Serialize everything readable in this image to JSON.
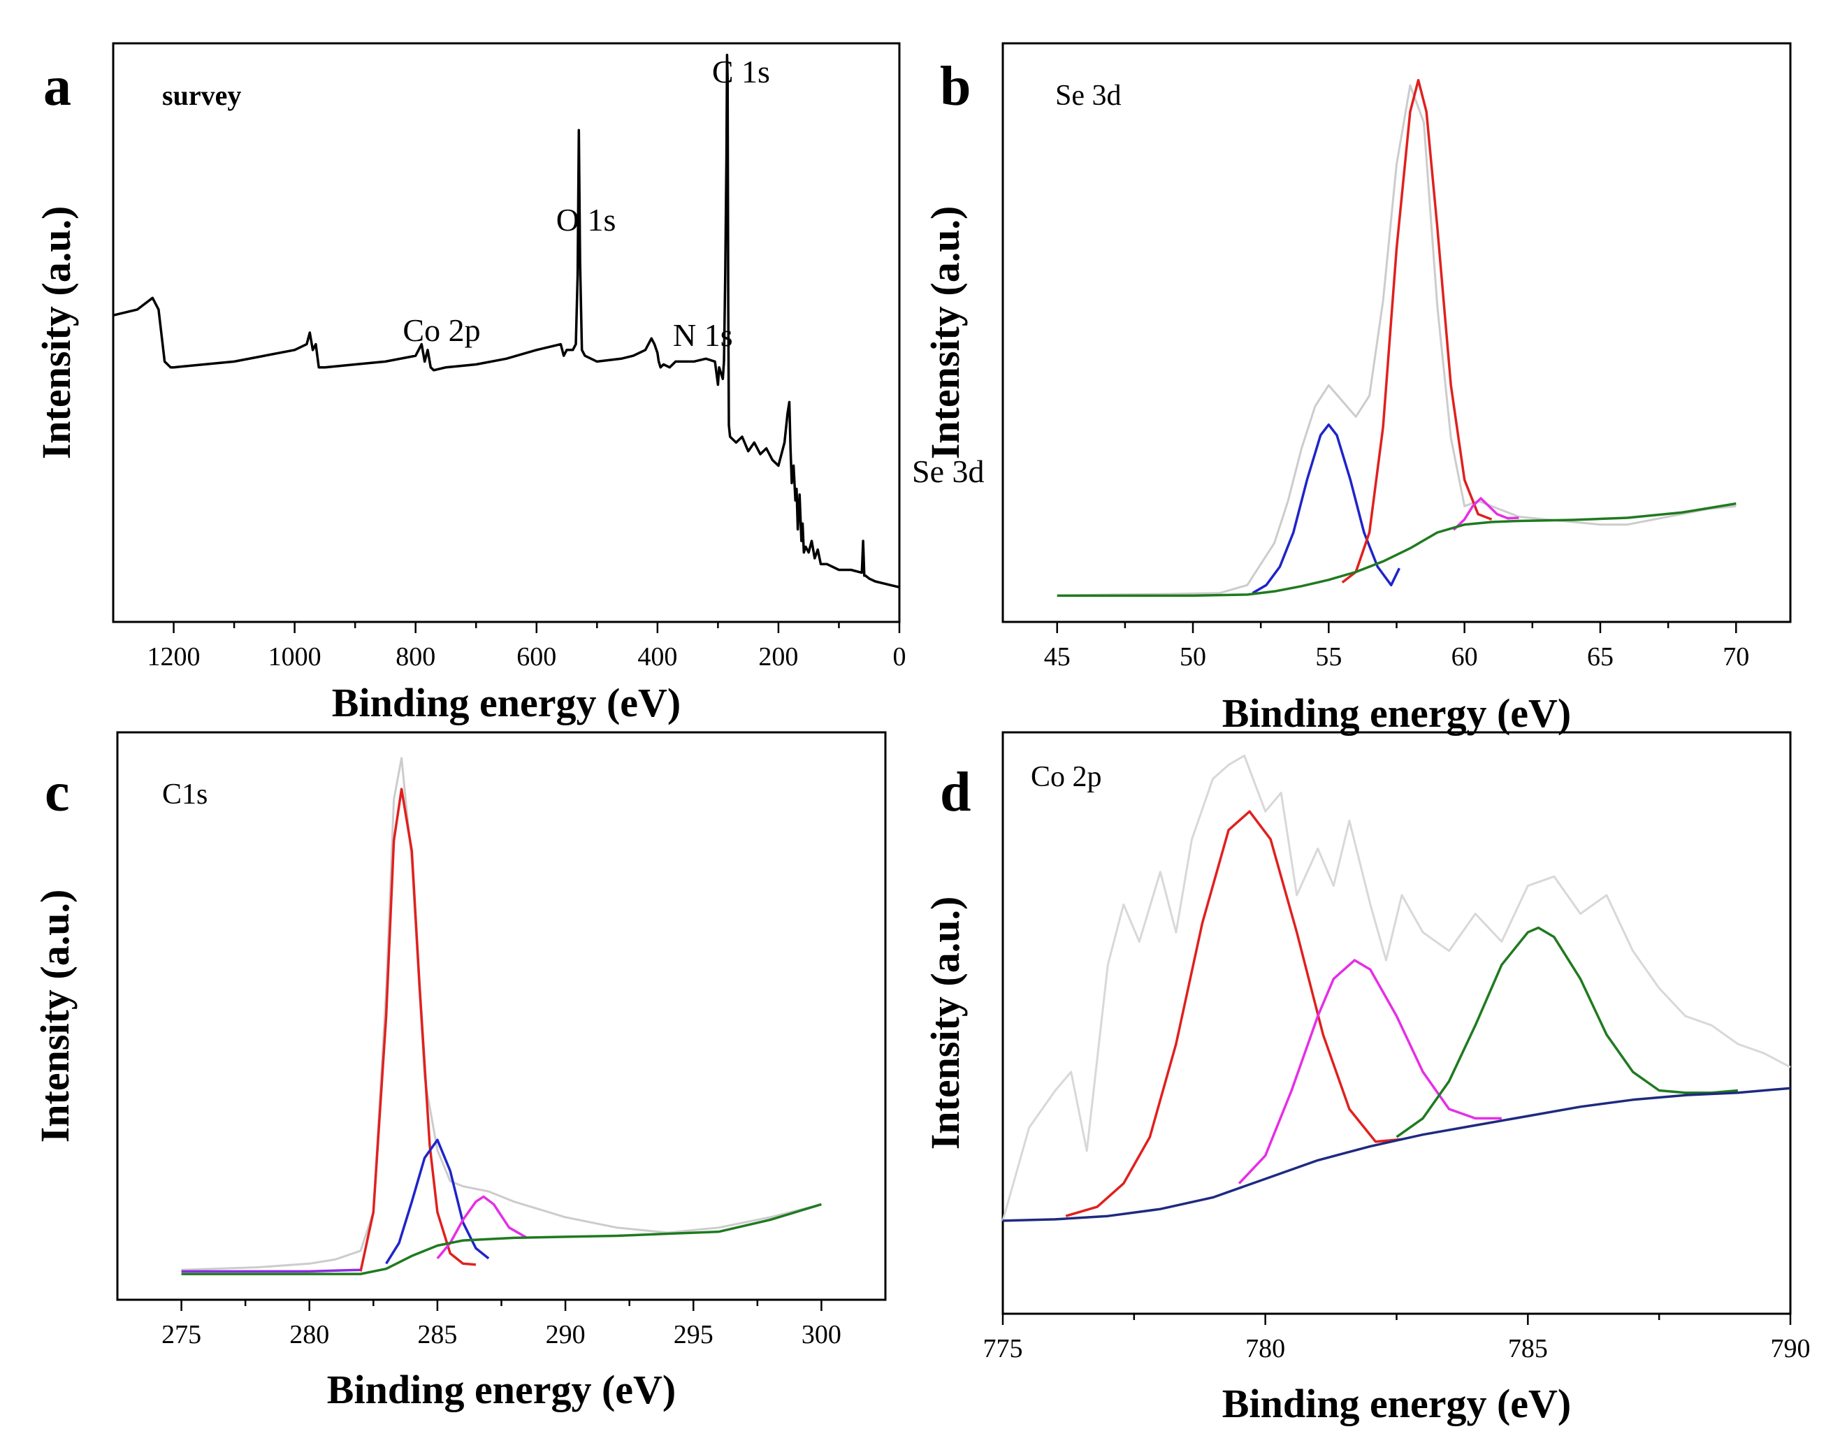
{
  "chart_data": [
    {
      "panel": "a",
      "type": "line",
      "title": "survey",
      "xlabel": "Binding energy (eV)",
      "ylabel": "Intensity (a.u.)",
      "xlim": [
        1300,
        0
      ],
      "ylim": [
        0,
        100
      ],
      "xticks": [
        1200,
        1000,
        800,
        600,
        400,
        200,
        0
      ],
      "colors": {
        "survey": "#000000"
      },
      "series": [
        {
          "name": "survey",
          "x": [
            1300,
            1260,
            1235,
            1225,
            1215,
            1205,
            1200,
            1150,
            1100,
            1050,
            1000,
            980,
            975,
            970,
            965,
            960,
            950,
            900,
            850,
            800,
            790,
            785,
            780,
            775,
            770,
            750,
            700,
            650,
            600,
            560,
            555,
            550,
            540,
            535,
            532,
            530,
            528,
            525,
            520,
            500,
            460,
            440,
            420,
            410,
            405,
            400,
            398,
            395,
            390,
            380,
            370,
            340,
            320,
            305,
            300,
            298,
            295,
            292,
            290,
            288,
            286,
            285,
            284,
            283,
            282,
            280,
            270,
            260,
            250,
            240,
            230,
            220,
            210,
            200,
            190,
            185,
            182,
            180,
            178,
            175,
            172,
            170,
            168,
            165,
            162,
            160,
            158,
            155,
            150,
            145,
            140,
            135,
            130,
            120,
            100,
            80,
            62,
            60,
            58,
            56,
            50,
            40,
            20,
            0
          ],
          "y": [
            53,
            54,
            56,
            54,
            45,
            44,
            44,
            44.5,
            45,
            46,
            47,
            48,
            50,
            47,
            48,
            44,
            44,
            44.5,
            45,
            46,
            48,
            45,
            47,
            44,
            43.5,
            44,
            44.5,
            45.5,
            47,
            48,
            46,
            47,
            47,
            48,
            60,
            85,
            62,
            47,
            46,
            45,
            45.5,
            46,
            47,
            49,
            48,
            46.5,
            45,
            44,
            44.5,
            44,
            45,
            45,
            45.5,
            45,
            41,
            44,
            43,
            42,
            45,
            60,
            80,
            98,
            94,
            55,
            34,
            32,
            31,
            32,
            29.5,
            31,
            29,
            30,
            28,
            27,
            31,
            36,
            38,
            30,
            24,
            27,
            21,
            23,
            16,
            22,
            14,
            17,
            12,
            13,
            12,
            14,
            11,
            12.5,
            10,
            10,
            9,
            9,
            8.5,
            14,
            8,
            8,
            7.5,
            7,
            6.5,
            6
          ]
        }
      ],
      "annotations": [
        {
          "text": "C 1s",
          "x": 285
        },
        {
          "text": "O 1s",
          "x": 532
        },
        {
          "text": "N 1s",
          "x": 400
        },
        {
          "text": "Co 2p",
          "x": 780
        },
        {
          "text": "Se 3d",
          "x": 58
        }
      ]
    },
    {
      "panel": "b",
      "type": "line",
      "title": "Se 3d",
      "xlabel": "Binding energy (eV)",
      "ylabel": "Intensity (a.u.)",
      "xlim": [
        43,
        72
      ],
      "ylim": [
        -5,
        105
      ],
      "xticks": [
        45,
        50,
        55,
        60,
        65,
        70
      ],
      "colors": {
        "raw": "#cccccc",
        "peak1": "#1f24c9",
        "peak2": "#e0201e",
        "peak3": "#e62ee6",
        "background": "#1f7a1f"
      },
      "series": [
        {
          "name": "raw",
          "x": [
            45,
            47,
            49,
            51,
            52,
            53,
            53.5,
            54,
            54.5,
            55,
            55.5,
            56,
            56.5,
            57,
            57.5,
            58,
            58.5,
            59,
            59.5,
            60,
            60.5,
            61,
            61.5,
            62,
            63,
            64,
            65,
            66,
            67,
            68,
            69,
            70
          ],
          "y": [
            0,
            0.2,
            0.3,
            0.5,
            2,
            10,
            18,
            28,
            36,
            40,
            37,
            34,
            38,
            56,
            82,
            97,
            90,
            55,
            30,
            17,
            18,
            17,
            16,
            15,
            14.5,
            14,
            13.5,
            13.5,
            14.5,
            15.5,
            16.5,
            17
          ]
        },
        {
          "name": "peak1",
          "x": [
            52.2,
            52.7,
            53.2,
            53.7,
            54.2,
            54.7,
            55,
            55.3,
            55.8,
            56.3,
            56.8,
            57.3,
            57.6
          ],
          "y": [
            0.5,
            2,
            5.5,
            12,
            22,
            30.5,
            32.5,
            30.5,
            22,
            12,
            5.5,
            2,
            5.2
          ]
        },
        {
          "name": "peak2",
          "x": [
            55.5,
            56,
            56.5,
            57,
            57.5,
            58,
            58.3,
            58.6,
            59,
            59.5,
            60,
            60.5,
            61
          ],
          "y": [
            2.5,
            4.5,
            12,
            32,
            66,
            92,
            98,
            92,
            70,
            40,
            22,
            15.5,
            14.5
          ]
        },
        {
          "name": "peak3",
          "x": [
            59.6,
            60,
            60.3,
            60.6,
            60.9,
            61.2,
            61.6,
            62
          ],
          "y": [
            12.5,
            14.5,
            17,
            18.5,
            17,
            15.5,
            14.7,
            14.8
          ]
        },
        {
          "name": "background",
          "x": [
            45,
            48,
            50,
            52,
            53,
            54,
            55,
            56,
            57,
            58,
            59,
            60,
            61,
            62,
            64,
            66,
            68,
            70
          ],
          "y": [
            0,
            0,
            0,
            0.2,
            0.8,
            1.8,
            3,
            4.5,
            6.5,
            9,
            12,
            13.5,
            14,
            14.2,
            14.4,
            14.8,
            15.8,
            17.5
          ]
        }
      ]
    },
    {
      "panel": "c",
      "type": "line",
      "title": "C1s",
      "xlabel": "Binding energy (eV)",
      "ylabel": "Intensity (a.u.)",
      "xlim": [
        272.5,
        302.5
      ],
      "ylim": [
        -5,
        105
      ],
      "xticks": [
        275,
        280,
        285,
        290,
        295,
        300
      ],
      "colors": {
        "raw": "#cccccc",
        "peak1": "#e0201e",
        "peak2": "#1f24c9",
        "peak3": "#e62ee6",
        "background": "#1f7a1f",
        "envelope": "#8a2be2"
      },
      "series": [
        {
          "name": "raw",
          "x": [
            275,
            278,
            280,
            281,
            282,
            282.5,
            283,
            283.3,
            283.6,
            284,
            284.5,
            285,
            285.5,
            286,
            287,
            288,
            289,
            290,
            292,
            294,
            296,
            298,
            300
          ],
          "y": [
            0.8,
            1.3,
            2,
            2.8,
            4.5,
            12,
            55,
            92,
            100,
            80,
            38,
            24,
            18,
            17,
            16,
            14,
            12.5,
            11,
            9,
            8,
            9,
            11,
            13.5
          ]
        },
        {
          "name": "peak1",
          "x": [
            282,
            282.5,
            283,
            283.3,
            283.6,
            284,
            284.3,
            284.7,
            285,
            285.5,
            286,
            286.5
          ],
          "y": [
            0.5,
            12,
            50,
            84,
            94,
            82,
            56,
            25,
            12,
            4,
            2,
            1.8
          ]
        },
        {
          "name": "peak2",
          "x": [
            283,
            283.5,
            284,
            284.5,
            285,
            285.5,
            286,
            286.5,
            287
          ],
          "y": [
            2,
            6,
            14,
            22.5,
            26,
            20,
            10,
            5,
            3
          ]
        },
        {
          "name": "peak3",
          "x": [
            285,
            285.5,
            286,
            286.5,
            286.8,
            287.2,
            287.8,
            288.5
          ],
          "y": [
            3,
            6,
            10.5,
            14,
            15,
            13.5,
            9,
            7
          ]
        },
        {
          "name": "background",
          "x": [
            275,
            280,
            282,
            283,
            284,
            285,
            286,
            288,
            290,
            292,
            294,
            296,
            298,
            300
          ],
          "y": [
            0,
            0,
            0,
            1,
            3.5,
            5.5,
            6.5,
            7,
            7.2,
            7.4,
            7.8,
            8.2,
            10.5,
            13.5
          ]
        },
        {
          "name": "envelope",
          "x": [
            275,
            280,
            282
          ],
          "y": [
            0.5,
            0.5,
            0.8
          ]
        }
      ]
    },
    {
      "panel": "d",
      "type": "line",
      "title": "Co 2p",
      "xlabel": "Binding energy (eV)",
      "ylabel": "Intensity (a.u.)",
      "xlim": [
        775,
        790
      ],
      "ylim": [
        -20,
        105
      ],
      "xticks": [
        775,
        780,
        785,
        790
      ],
      "colors": {
        "raw": "#d8d8d8",
        "peak1": "#e0201e",
        "peak2": "#e62ee6",
        "peak3": "#1f7a1f",
        "background": "#1f2a80"
      },
      "series": [
        {
          "name": "raw",
          "x": [
            775,
            775.5,
            776,
            776.3,
            776.6,
            777,
            777.3,
            777.6,
            778,
            778.3,
            778.6,
            779,
            779.3,
            779.6,
            780,
            780.3,
            780.6,
            781,
            781.3,
            781.6,
            782,
            782.3,
            782.6,
            783,
            783.5,
            784,
            784.5,
            785,
            785.5,
            786,
            786.5,
            787,
            787.5,
            788,
            788.5,
            789,
            789.5,
            790
          ],
          "y": [
            0,
            20,
            28,
            32,
            15,
            55,
            68,
            60,
            75,
            62,
            82,
            95,
            98,
            100,
            88,
            92,
            70,
            80,
            72,
            86,
            68,
            56,
            70,
            62,
            58,
            66,
            60,
            72,
            74,
            66,
            70,
            58,
            50,
            44,
            42,
            38,
            36,
            33
          ]
        },
        {
          "name": "peak1",
          "x": [
            776.2,
            776.8,
            777.3,
            777.8,
            778.3,
            778.8,
            779.3,
            779.7,
            780.1,
            780.6,
            781.1,
            781.6,
            782.1,
            782.6
          ],
          "y": [
            1,
            3,
            8,
            18,
            38,
            64,
            84,
            88,
            82,
            62,
            40,
            24,
            17,
            17.5
          ]
        },
        {
          "name": "peak2",
          "x": [
            779.5,
            780,
            780.5,
            781,
            781.3,
            781.7,
            782,
            782.5,
            783,
            783.5,
            784,
            784.5
          ],
          "y": [
            8,
            14,
            28,
            44,
            52,
            56,
            54,
            44,
            32,
            24,
            22,
            22
          ]
        },
        {
          "name": "peak3",
          "x": [
            782.5,
            783,
            783.5,
            784,
            784.5,
            785,
            785.2,
            785.5,
            786,
            786.5,
            787,
            787.5,
            788,
            788.5,
            789
          ],
          "y": [
            18,
            22,
            30,
            42,
            55,
            62,
            63,
            61,
            52,
            40,
            32,
            28,
            27.5,
            27.5,
            28
          ]
        },
        {
          "name": "background",
          "x": [
            775,
            776,
            777,
            778,
            779,
            779.5,
            780,
            781,
            782,
            783,
            784,
            785,
            786,
            787,
            788,
            789,
            790
          ],
          "y": [
            0,
            0.3,
            1,
            2.5,
            5,
            7,
            9,
            13,
            16,
            18.5,
            20.5,
            22.5,
            24.5,
            26,
            27,
            27.5,
            28.5
          ]
        }
      ]
    }
  ]
}
